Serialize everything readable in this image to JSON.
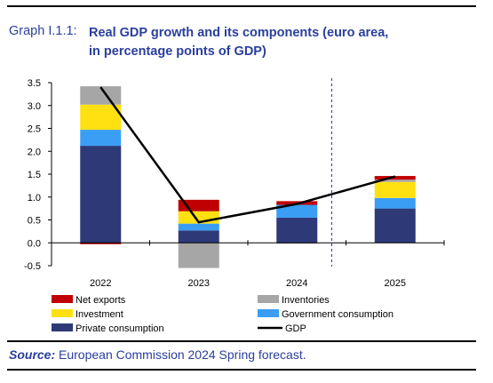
{
  "header": {
    "graph_label": "Graph I.1.1:",
    "title_line1": "Real GDP growth and its components (euro area,",
    "title_line2": "in percentage points of GDP)"
  },
  "source": {
    "label": "Source:",
    "text": "European Commission 2024 Spring forecast."
  },
  "colors": {
    "net_exports": "#c00000",
    "inventories": "#a6a6a6",
    "investment": "#ffe010",
    "government_consumption": "#3a9ef5",
    "private_consumption": "#2e3a78",
    "gdp": "#000000"
  },
  "chart_data": {
    "type": "bar",
    "stacked": true,
    "categories": [
      "2022",
      "2023",
      "2024",
      "2025"
    ],
    "ylim": [
      -0.5,
      3.5
    ],
    "yticks": [
      "3.5",
      "3.0",
      "2.5",
      "2.0",
      "1.5",
      "1.0",
      "0.5",
      "0.0",
      "-0.5"
    ],
    "ytick_values": [
      3.5,
      3.0,
      2.5,
      2.0,
      1.5,
      1.0,
      0.5,
      0.0,
      -0.5
    ],
    "forecast_divider_after": "2024",
    "series": [
      {
        "name": "Private consumption",
        "key": "private_consumption",
        "values": [
          2.12,
          0.27,
          0.55,
          0.75
        ]
      },
      {
        "name": "Government consumption",
        "key": "government_consumption",
        "values": [
          0.35,
          0.15,
          0.28,
          0.23
        ]
      },
      {
        "name": "Investment",
        "key": "investment",
        "values": [
          0.55,
          0.27,
          0.0,
          0.35
        ]
      },
      {
        "name": "Inventories",
        "key": "inventories",
        "values": [
          0.4,
          -0.55,
          -0.02,
          0.05
        ]
      },
      {
        "name": "Net exports",
        "key": "net_exports",
        "values": [
          -0.03,
          0.25,
          0.08,
          0.08
        ]
      }
    ],
    "line": {
      "name": "GDP",
      "key": "gdp",
      "values": [
        3.4,
        0.45,
        0.85,
        1.45
      ]
    },
    "legend": [
      {
        "name": "Net exports",
        "key": "net_exports",
        "kind": "box"
      },
      {
        "name": "Inventories",
        "key": "inventories",
        "kind": "box"
      },
      {
        "name": "Investment",
        "key": "investment",
        "kind": "box"
      },
      {
        "name": "Government consumption",
        "key": "government_consumption",
        "kind": "box"
      },
      {
        "name": "Private consumption",
        "key": "private_consumption",
        "kind": "box"
      },
      {
        "name": "GDP",
        "key": "gdp",
        "kind": "line"
      }
    ]
  }
}
